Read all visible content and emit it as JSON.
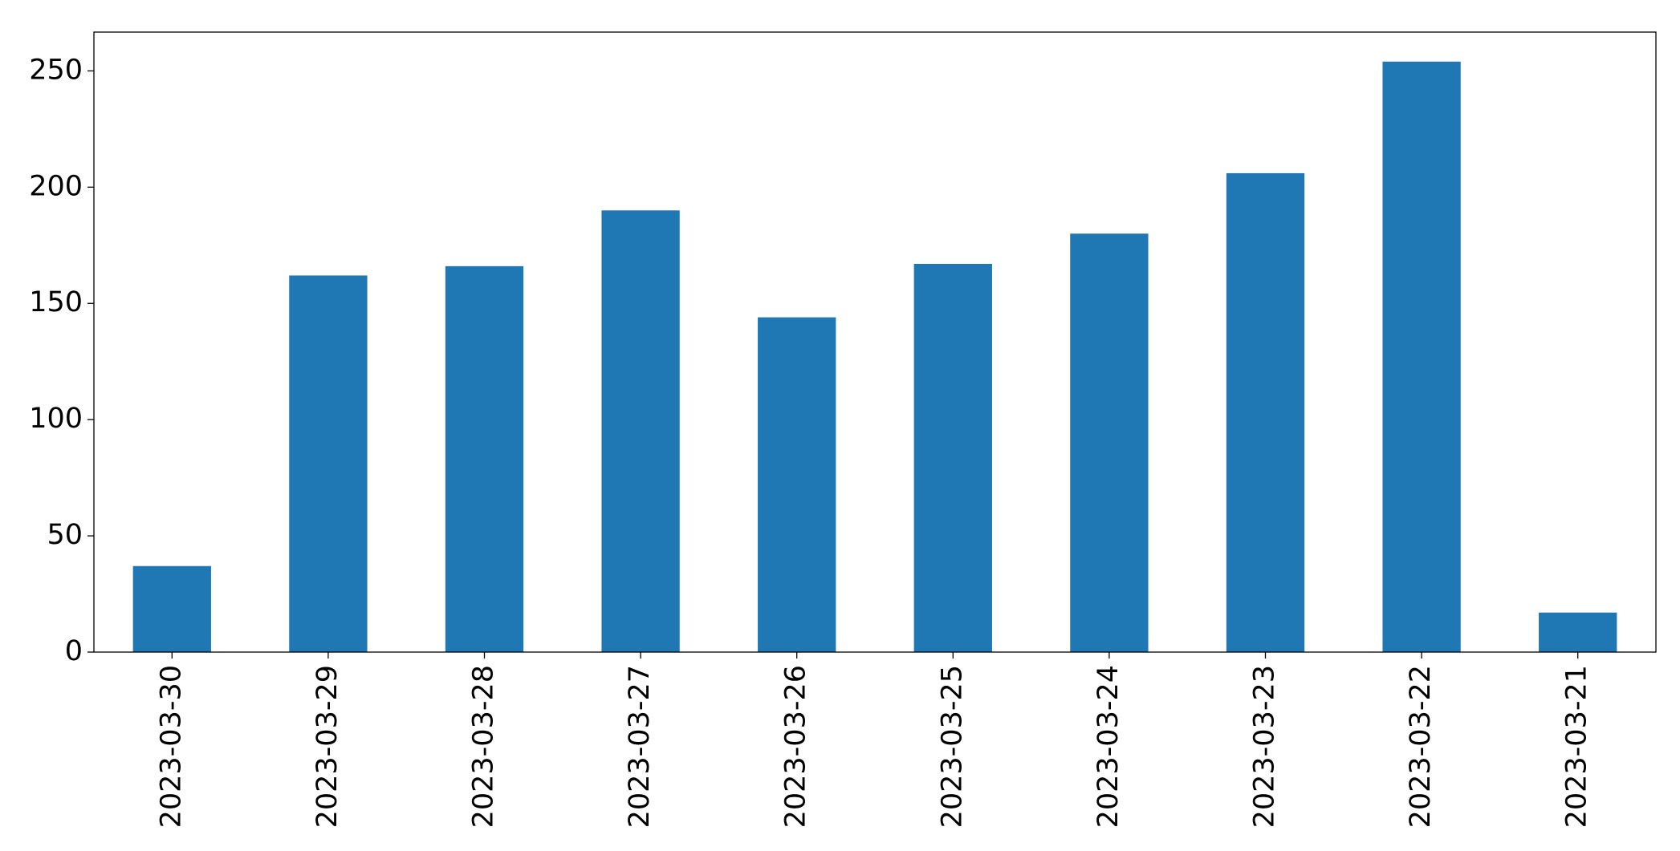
{
  "chart_data": {
    "type": "bar",
    "categories": [
      "2023-03-30",
      "2023-03-29",
      "2023-03-28",
      "2023-03-27",
      "2023-03-26",
      "2023-03-25",
      "2023-03-24",
      "2023-03-23",
      "2023-03-22",
      "2023-03-21"
    ],
    "values": [
      37,
      162,
      166,
      190,
      144,
      167,
      180,
      206,
      254,
      17
    ],
    "color": "#1f77b4",
    "ylim": [
      0,
      266.7
    ],
    "yticks": [
      0,
      50,
      100,
      150,
      200,
      250
    ],
    "grid": false
  }
}
